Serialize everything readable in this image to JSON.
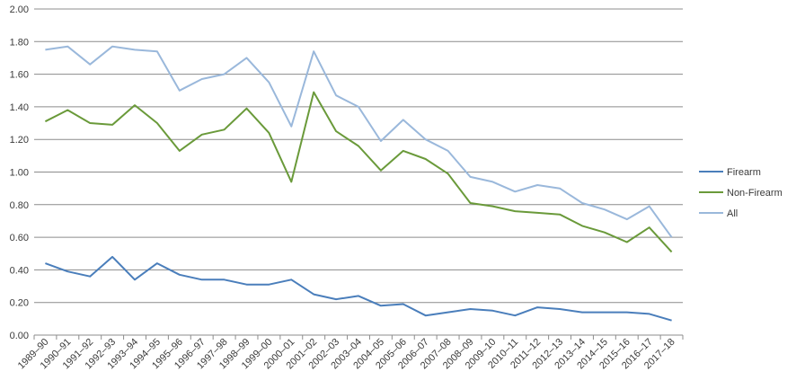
{
  "chart_data": {
    "type": "line",
    "title": "",
    "xlabel": "",
    "ylabel": "",
    "ylim": [
      0,
      2
    ],
    "y_ticks": [
      "0.00",
      "0.20",
      "0.40",
      "0.60",
      "0.80",
      "1.00",
      "1.20",
      "1.40",
      "1.60",
      "1.80",
      "2.00"
    ],
    "grid": true,
    "legend_position": "right",
    "categories": [
      "1989–90",
      "1990–91",
      "1991–92",
      "1992–93",
      "1993–94",
      "1994–95",
      "1995–96",
      "1996–97",
      "1997–98",
      "1998–99",
      "1999–00",
      "2000–01",
      "2001–02",
      "2002–03",
      "2003–04",
      "2004–05",
      "2005–06",
      "2006–07",
      "2007–08",
      "2008–09",
      "2009–10",
      "2010–11",
      "2011–12",
      "2012–13",
      "2013–14",
      "2014–15",
      "2015–16",
      "2016–17",
      "2017–18"
    ],
    "series": [
      {
        "name": "Firearm",
        "color": "#4a7ebb",
        "values": [
          0.44,
          0.39,
          0.36,
          0.48,
          0.34,
          0.44,
          0.37,
          0.34,
          0.34,
          0.31,
          0.31,
          0.34,
          0.25,
          0.22,
          0.24,
          0.18,
          0.19,
          0.12,
          0.14,
          0.16,
          0.15,
          0.12,
          0.17,
          0.16,
          0.14,
          0.14,
          0.14,
          0.13,
          0.09
        ]
      },
      {
        "name": "Non-Firearm",
        "color": "#6a9a3a",
        "values": [
          1.31,
          1.38,
          1.3,
          1.29,
          1.41,
          1.3,
          1.13,
          1.23,
          1.26,
          1.39,
          1.24,
          0.94,
          1.49,
          1.25,
          1.16,
          1.01,
          1.13,
          1.08,
          0.99,
          0.81,
          0.79,
          0.76,
          0.75,
          0.74,
          0.67,
          0.63,
          0.57,
          0.66,
          0.51
        ]
      },
      {
        "name": "All",
        "color": "#9ab8db",
        "values": [
          1.75,
          1.77,
          1.66,
          1.77,
          1.75,
          1.74,
          1.5,
          1.57,
          1.6,
          1.7,
          1.55,
          1.28,
          1.74,
          1.47,
          1.4,
          1.19,
          1.32,
          1.2,
          1.13,
          0.97,
          0.94,
          0.88,
          0.92,
          0.9,
          0.81,
          0.77,
          0.71,
          0.79,
          0.6
        ]
      }
    ]
  }
}
